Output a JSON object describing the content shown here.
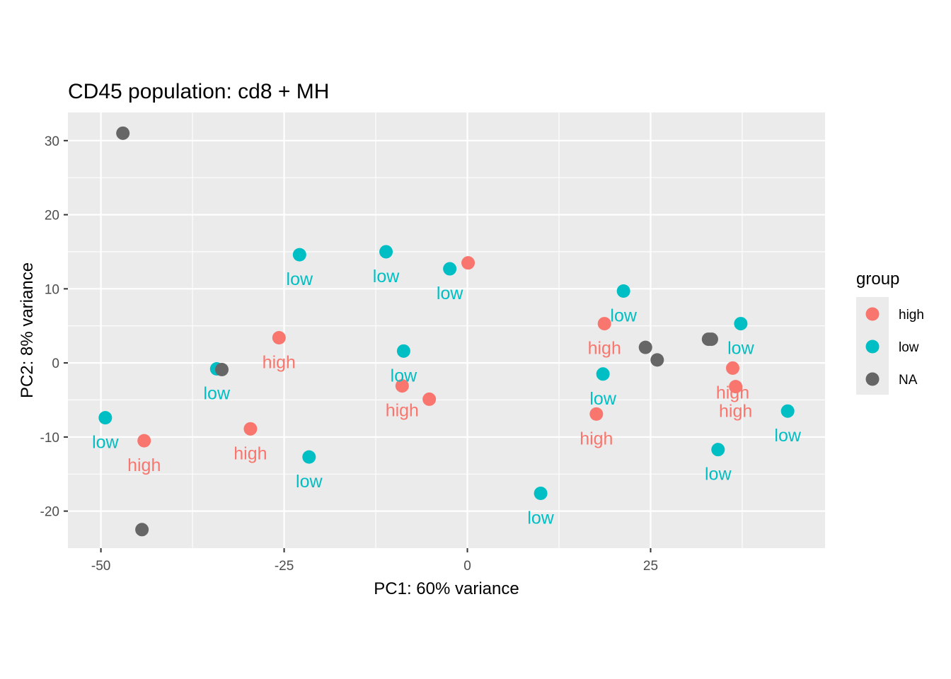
{
  "chart_data": {
    "type": "scatter",
    "title": "CD45 population: cd8 + MH",
    "xlabel": "PC1: 60% variance",
    "ylabel": "PC2: 8% variance",
    "xlim": [
      -54.5,
      48.8
    ],
    "ylim": [
      -25.0,
      33.8
    ],
    "xticks": [
      -50,
      -25,
      0,
      25
    ],
    "xtick_labels": [
      "-50",
      "-25",
      "0",
      "25"
    ],
    "yticks": [
      -20,
      -10,
      0,
      10,
      20,
      30
    ],
    "ytick_labels": [
      "-20",
      "-10",
      "0",
      "10",
      "20",
      "30"
    ],
    "grid": true,
    "legend": {
      "title": "group",
      "position": "right",
      "entries": [
        {
          "label": "high",
          "color": "#F8766D"
        },
        {
          "label": "low",
          "color": "#00BFC4"
        },
        {
          "label": "NA",
          "color": "#666666"
        }
      ]
    },
    "colors": {
      "high": "#F8766D",
      "low": "#00BFC4",
      "NA": "#666666"
    },
    "points": [
      {
        "x": -47.0,
        "y": 31.0,
        "group": "NA",
        "label": ""
      },
      {
        "x": -22.9,
        "y": 14.6,
        "group": "low",
        "label": "low"
      },
      {
        "x": -11.1,
        "y": 15.0,
        "group": "low",
        "label": "low"
      },
      {
        "x": -2.4,
        "y": 12.7,
        "group": "low",
        "label": "low"
      },
      {
        "x": 0.1,
        "y": 13.5,
        "group": "high",
        "label": ""
      },
      {
        "x": 21.3,
        "y": 9.7,
        "group": "low",
        "label": "low"
      },
      {
        "x": 18.7,
        "y": 5.3,
        "group": "high",
        "label": "high"
      },
      {
        "x": 37.3,
        "y": 5.3,
        "group": "low",
        "label": "low"
      },
      {
        "x": 32.9,
        "y": 3.2,
        "group": "NA",
        "label": ""
      },
      {
        "x": 33.3,
        "y": 3.2,
        "group": "NA",
        "label": ""
      },
      {
        "x": 24.3,
        "y": 2.1,
        "group": "NA",
        "label": ""
      },
      {
        "x": 25.9,
        "y": 0.4,
        "group": "NA",
        "label": ""
      },
      {
        "x": -25.7,
        "y": 3.4,
        "group": "high",
        "label": "high"
      },
      {
        "x": -8.7,
        "y": 1.6,
        "group": "low",
        "label": "low"
      },
      {
        "x": -34.2,
        "y": -0.8,
        "group": "low",
        "label": "low"
      },
      {
        "x": -33.5,
        "y": -0.9,
        "group": "NA",
        "label": ""
      },
      {
        "x": -8.9,
        "y": -3.1,
        "group": "high",
        "label": "high"
      },
      {
        "x": -5.2,
        "y": -4.9,
        "group": "high",
        "label": ""
      },
      {
        "x": 36.2,
        "y": -0.7,
        "group": "high",
        "label": "high"
      },
      {
        "x": 36.6,
        "y": -3.2,
        "group": "high",
        "label": "high"
      },
      {
        "x": 18.5,
        "y": -1.5,
        "group": "low",
        "label": "low"
      },
      {
        "x": 17.6,
        "y": -6.9,
        "group": "high",
        "label": "high"
      },
      {
        "x": 43.7,
        "y": -6.5,
        "group": "low",
        "label": "low"
      },
      {
        "x": -49.4,
        "y": -7.4,
        "group": "low",
        "label": "low"
      },
      {
        "x": -44.1,
        "y": -10.5,
        "group": "high",
        "label": "high"
      },
      {
        "x": -29.6,
        "y": -8.9,
        "group": "high",
        "label": "high"
      },
      {
        "x": -21.6,
        "y": -12.7,
        "group": "low",
        "label": "low"
      },
      {
        "x": 34.2,
        "y": -11.7,
        "group": "low",
        "label": "low"
      },
      {
        "x": 10.0,
        "y": -17.6,
        "group": "low",
        "label": "low"
      },
      {
        "x": -44.4,
        "y": -22.5,
        "group": "NA",
        "label": ""
      }
    ]
  }
}
